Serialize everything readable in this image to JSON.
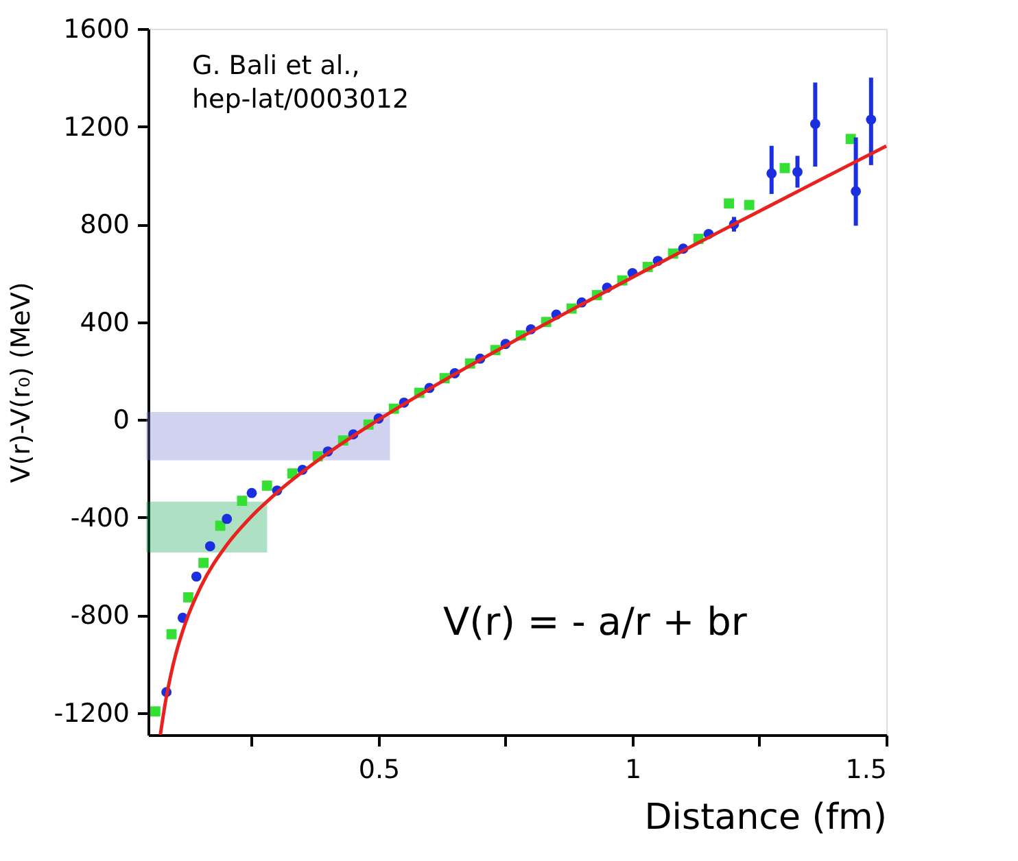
{
  "chart_data": {
    "type": "scatter",
    "xlabel": "Distance (fm)",
    "ylabel": "V(r)-V(r₀)   (MeV)",
    "annotations": [
      "G. Bali et al.,\nhep-lat/0003012",
      "V(r) = - a/r + br"
    ],
    "xlim": [
      0.046,
      1.5
    ],
    "ylim": [
      -1290,
      1600
    ],
    "xticks": [
      {
        "value": 0.25,
        "label": null
      },
      0.5,
      {
        "value": 0.75,
        "label": null
      },
      1,
      {
        "value": 1.25,
        "label": null
      },
      1.5
    ],
    "yticks": [
      -1200,
      -800,
      -400,
      0,
      400,
      800,
      1200,
      1600
    ],
    "grid": false,
    "bands": [
      {
        "axis": "y",
        "from": -158,
        "to": 23,
        "color": "#7b7fd6"
      },
      {
        "axis": "y",
        "from": -535,
        "to": -344,
        "color": "#1aa85a"
      }
    ],
    "series": [
      {
        "color": "#33e033",
        "marker": "square",
        "x": [
          0.06,
          0.092,
          0.125,
          0.155,
          0.188,
          0.231,
          0.28,
          0.33,
          0.38,
          0.43,
          0.48,
          0.53,
          0.58,
          0.63,
          0.68,
          0.73,
          0.78,
          0.83,
          0.88,
          0.93,
          0.98,
          1.03,
          1.08,
          1.13,
          1.19,
          1.23,
          1.3,
          1.43
        ],
        "values": [
          -1194,
          -878,
          -727,
          -586,
          -434,
          -332,
          -270,
          -220,
          -150,
          -85,
          -20,
          45,
          110,
          170,
          230,
          285,
          345,
          400,
          455,
          510,
          570,
          625,
          680,
          740,
          885,
          879,
          1030,
          1149
        ]
      },
      {
        "color": "#1a2fe0",
        "marker": "circle",
        "x": [
          0.082,
          0.114,
          0.141,
          0.168,
          0.201,
          0.25,
          0.3,
          0.35,
          0.4,
          0.45,
          0.5,
          0.55,
          0.6,
          0.65,
          0.7,
          0.75,
          0.8,
          0.85,
          0.9,
          0.95,
          1.0,
          1.05,
          1.1,
          1.15,
          1.2,
          1.274,
          1.325,
          1.36,
          1.44,
          1.47
        ],
        "values": [
          -1115,
          -811,
          -642,
          -518,
          -406,
          -300,
          -290,
          -205,
          -130,
          -60,
          5,
          70,
          130,
          190,
          250,
          310,
          370,
          430,
          480,
          540,
          600,
          650,
          700,
          760,
          800,
          1008,
          1014,
          1211,
          935,
          1228
        ],
        "errors": [
          null,
          null,
          null,
          null,
          null,
          null,
          null,
          null,
          null,
          null,
          null,
          null,
          null,
          null,
          null,
          null,
          null,
          null,
          null,
          null,
          null,
          null,
          null,
          null,
          30,
          [
            924,
            1121
          ],
          [
            950,
            1080
          ],
          [
            1036,
            1380
          ],
          [
            794,
            1155
          ],
          [
            1042,
            1400
          ]
        ]
      },
      {
        "type": "line",
        "color": "#e8231f",
        "x": [
          0.07,
          0.08,
          0.09,
          0.1,
          0.12,
          0.15,
          0.2,
          0.25,
          0.3,
          0.4,
          0.5,
          0.6,
          0.7,
          0.8,
          0.9,
          1.0,
          1.1,
          1.2,
          1.3,
          1.4,
          1.5
        ],
        "values": [
          -1290,
          -1156,
          -1050,
          -963,
          -828,
          -682,
          -515,
          -395,
          -298,
          -137,
          0,
          126,
          245,
          360,
          472,
          583,
          692,
          800,
          907,
          1014,
          1120
        ]
      }
    ]
  }
}
